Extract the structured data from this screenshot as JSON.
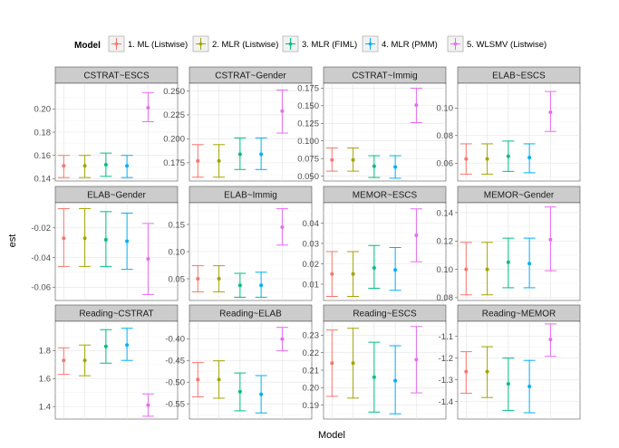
{
  "chart_data": {
    "type": "scatter",
    "chart_subtype": "point-errorbar-facets",
    "xlabel": "Model",
    "ylabel": "est",
    "legend": {
      "title": "Model",
      "placement": "top",
      "entries": [
        {
          "name": "1. ML (Listwise)",
          "color": "#F8766D"
        },
        {
          "name": "2. MLR (Listwise)",
          "color": "#A3A500"
        },
        {
          "name": "3. MLR (FIML)",
          "color": "#00BF7D"
        },
        {
          "name": "4. MLR (PMM)",
          "color": "#00B0F6"
        },
        {
          "name": "5. WLSMV (Listwise)",
          "color": "#E76BF3"
        }
      ]
    },
    "grid": true,
    "facets": [
      {
        "title": "CSTRAT~ESCS",
        "ylim": [
          0.138,
          0.222
        ],
        "yticks": [
          0.14,
          0.16,
          0.18,
          0.2
        ],
        "points": [
          {
            "est": 0.151,
            "lo": 0.141,
            "hi": 0.16
          },
          {
            "est": 0.151,
            "lo": 0.141,
            "hi": 0.16
          },
          {
            "est": 0.152,
            "lo": 0.142,
            "hi": 0.162
          },
          {
            "est": 0.151,
            "lo": 0.141,
            "hi": 0.16
          },
          {
            "est": 0.201,
            "lo": 0.189,
            "hi": 0.214
          }
        ]
      },
      {
        "title": "CSTRAT~Gender",
        "ylim": [
          0.156,
          0.258
        ],
        "yticks": [
          0.175,
          0.2,
          0.225,
          0.25
        ],
        "points": [
          {
            "est": 0.177,
            "lo": 0.16,
            "hi": 0.194
          },
          {
            "est": 0.177,
            "lo": 0.16,
            "hi": 0.194
          },
          {
            "est": 0.184,
            "lo": 0.168,
            "hi": 0.201
          },
          {
            "est": 0.184,
            "lo": 0.168,
            "hi": 0.201
          },
          {
            "est": 0.229,
            "lo": 0.206,
            "hi": 0.251
          }
        ]
      },
      {
        "title": "CSTRAT~Immig",
        "ylim": [
          0.043,
          0.182
        ],
        "yticks": [
          0.05,
          0.075,
          0.1,
          0.125,
          0.15,
          0.175
        ],
        "points": [
          {
            "est": 0.073,
            "lo": 0.057,
            "hi": 0.09
          },
          {
            "est": 0.073,
            "lo": 0.057,
            "hi": 0.09
          },
          {
            "est": 0.064,
            "lo": 0.048,
            "hi": 0.079
          },
          {
            "est": 0.063,
            "lo": 0.047,
            "hi": 0.079
          },
          {
            "est": 0.151,
            "lo": 0.126,
            "hi": 0.175
          }
        ]
      },
      {
        "title": "ELAB~ESCS",
        "ylim": [
          0.047,
          0.118
        ],
        "yticks": [
          0.06,
          0.08,
          0.1
        ],
        "points": [
          {
            "est": 0.063,
            "lo": 0.052,
            "hi": 0.074
          },
          {
            "est": 0.063,
            "lo": 0.052,
            "hi": 0.074
          },
          {
            "est": 0.065,
            "lo": 0.054,
            "hi": 0.076
          },
          {
            "est": 0.064,
            "lo": 0.053,
            "hi": 0.074
          },
          {
            "est": 0.097,
            "lo": 0.083,
            "hi": 0.112
          }
        ]
      },
      {
        "title": "ELAB~Gender",
        "ylim": [
          -0.069,
          -0.003
        ],
        "yticks": [
          -0.06,
          -0.04,
          -0.02
        ],
        "points": [
          {
            "est": -0.027,
            "lo": -0.046,
            "hi": -0.007
          },
          {
            "est": -0.027,
            "lo": -0.046,
            "hi": -0.007
          },
          {
            "est": -0.028,
            "lo": -0.046,
            "hi": -0.009
          },
          {
            "est": -0.029,
            "lo": -0.048,
            "hi": -0.01
          },
          {
            "est": -0.041,
            "lo": -0.065,
            "hi": -0.017
          }
        ]
      },
      {
        "title": "ELAB~Immig",
        "ylim": [
          0.01,
          0.19
        ],
        "yticks": [
          0.05,
          0.1,
          0.15
        ],
        "points": [
          {
            "est": 0.05,
            "lo": 0.026,
            "hi": 0.074
          },
          {
            "est": 0.05,
            "lo": 0.026,
            "hi": 0.074
          },
          {
            "est": 0.038,
            "lo": 0.016,
            "hi": 0.06
          },
          {
            "est": 0.038,
            "lo": 0.016,
            "hi": 0.062
          },
          {
            "est": 0.145,
            "lo": 0.112,
            "hi": 0.179
          }
        ]
      },
      {
        "title": "MEMOR~ESCS",
        "ylim": [
          0.002,
          0.05
        ],
        "yticks": [
          0.01,
          0.02,
          0.03,
          0.04
        ],
        "points": [
          {
            "est": 0.015,
            "lo": 0.004,
            "hi": 0.026
          },
          {
            "est": 0.015,
            "lo": 0.004,
            "hi": 0.026
          },
          {
            "est": 0.018,
            "lo": 0.008,
            "hi": 0.029
          },
          {
            "est": 0.017,
            "lo": 0.007,
            "hi": 0.028
          },
          {
            "est": 0.034,
            "lo": 0.021,
            "hi": 0.047
          }
        ]
      },
      {
        "title": "MEMOR~Gender",
        "ylim": [
          0.078,
          0.147
        ],
        "yticks": [
          0.08,
          0.1,
          0.12,
          0.14
        ],
        "points": [
          {
            "est": 0.1,
            "lo": 0.082,
            "hi": 0.119
          },
          {
            "est": 0.1,
            "lo": 0.082,
            "hi": 0.119
          },
          {
            "est": 0.105,
            "lo": 0.087,
            "hi": 0.122
          },
          {
            "est": 0.104,
            "lo": 0.087,
            "hi": 0.122
          },
          {
            "est": 0.121,
            "lo": 0.099,
            "hi": 0.144
          }
        ]
      },
      {
        "title": "Reading~CSTRAT",
        "ylim": [
          1.31,
          2.01
        ],
        "yticks": [
          1.4,
          1.6,
          1.8
        ],
        "points": [
          {
            "est": 1.73,
            "lo": 1.63,
            "hi": 1.82
          },
          {
            "est": 1.73,
            "lo": 1.62,
            "hi": 1.84
          },
          {
            "est": 1.83,
            "lo": 1.71,
            "hi": 1.95
          },
          {
            "est": 1.84,
            "lo": 1.73,
            "hi": 1.96
          },
          {
            "est": 1.41,
            "lo": 1.33,
            "hi": 1.49
          }
        ]
      },
      {
        "title": "Reading~ELAB",
        "ylim": [
          -0.585,
          -0.36
        ],
        "yticks": [
          -0.55,
          -0.5,
          -0.45,
          -0.4
        ],
        "points": [
          {
            "est": -0.494,
            "lo": -0.534,
            "hi": -0.455
          },
          {
            "est": -0.494,
            "lo": -0.537,
            "hi": -0.451
          },
          {
            "est": -0.522,
            "lo": -0.566,
            "hi": -0.479
          },
          {
            "est": -0.528,
            "lo": -0.571,
            "hi": -0.485
          },
          {
            "est": -0.401,
            "lo": -0.428,
            "hi": -0.374
          }
        ]
      },
      {
        "title": "Reading~ESCS",
        "ylim": [
          0.182,
          0.238
        ],
        "yticks": [
          0.19,
          0.2,
          0.21,
          0.22,
          0.23
        ],
        "points": [
          {
            "est": 0.214,
            "lo": 0.195,
            "hi": 0.233
          },
          {
            "est": 0.214,
            "lo": 0.194,
            "hi": 0.234
          },
          {
            "est": 0.206,
            "lo": 0.186,
            "hi": 0.226
          },
          {
            "est": 0.204,
            "lo": 0.185,
            "hi": 0.224
          },
          {
            "est": 0.216,
            "lo": 0.197,
            "hi": 0.235
          }
        ]
      },
      {
        "title": "Reading~MEMOR",
        "ylim": [
          -1.48,
          -1.03
        ],
        "yticks": [
          -1.4,
          -1.3,
          -1.2,
          -1.1
        ],
        "points": [
          {
            "est": -1.262,
            "lo": -1.361,
            "hi": -1.17
          },
          {
            "est": -1.262,
            "lo": -1.381,
            "hi": -1.147
          },
          {
            "est": -1.318,
            "lo": -1.44,
            "hi": -1.199
          },
          {
            "est": -1.33,
            "lo": -1.451,
            "hi": -1.21
          },
          {
            "est": -1.114,
            "lo": -1.191,
            "hi": -1.042
          }
        ]
      }
    ]
  }
}
